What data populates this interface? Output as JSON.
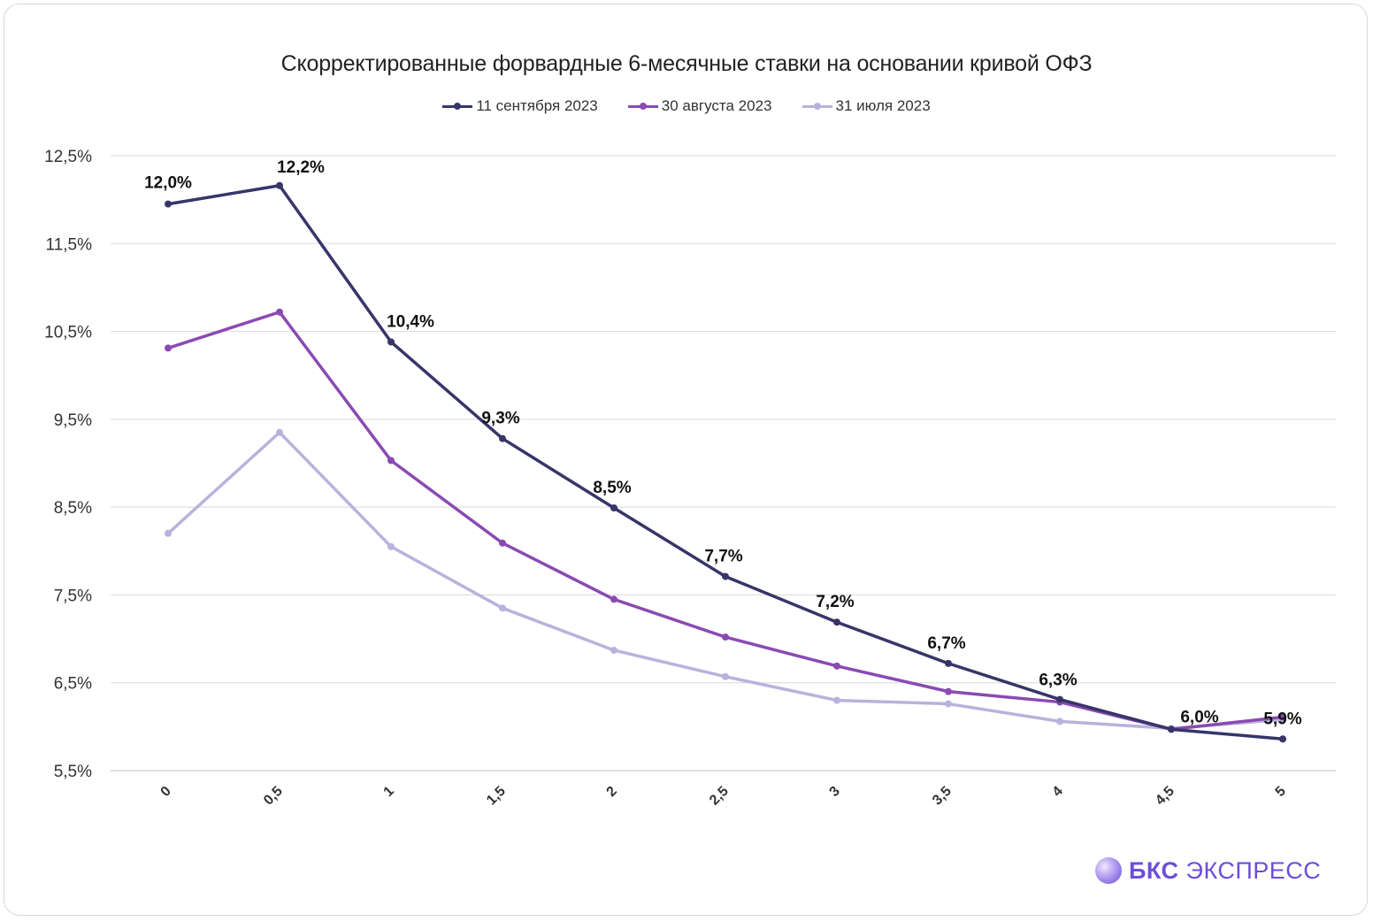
{
  "chart_data": {
    "type": "line",
    "title": "Скорректированные форвардные 6-месячные ставки на основании кривой ОФЗ",
    "categories": [
      "0",
      "0,5",
      "1",
      "1,5",
      "2",
      "2,5",
      "3",
      "3,5",
      "4",
      "4,5",
      "5"
    ],
    "yticks": [
      "5,5%",
      "6,5%",
      "7,5%",
      "8,5%",
      "9,5%",
      "10,5%",
      "11,5%",
      "12,5%"
    ],
    "ylim": [
      5.5,
      12.5
    ],
    "grid": true,
    "legend_position": "top",
    "series": [
      {
        "name": "11 сентября 2023",
        "color": "#373568",
        "values": [
          11.95,
          12.16,
          10.38,
          9.28,
          8.49,
          7.71,
          7.19,
          6.72,
          6.31,
          5.97,
          5.86
        ],
        "labels": [
          "12,0%",
          "12,2%",
          "10,4%",
          "9,3%",
          "8,5%",
          "7,7%",
          "7,2%",
          "6,7%",
          "6,3%",
          "6,0%",
          "5,9%"
        ]
      },
      {
        "name": "30 августа 2023",
        "color": "#8a4ab2",
        "values": [
          10.31,
          10.72,
          9.03,
          8.09,
          7.45,
          7.02,
          6.69,
          6.4,
          6.28,
          5.97,
          6.11
        ]
      },
      {
        "name": "31 июля 2023",
        "color": "#b8b3dc",
        "values": [
          8.2,
          9.35,
          8.05,
          7.35,
          6.87,
          6.57,
          6.3,
          6.26,
          6.06,
          5.98,
          6.08
        ]
      }
    ]
  },
  "logo": {
    "brand_bold": "БКС",
    "brand_rest": "ЭКСПРЕСС"
  }
}
